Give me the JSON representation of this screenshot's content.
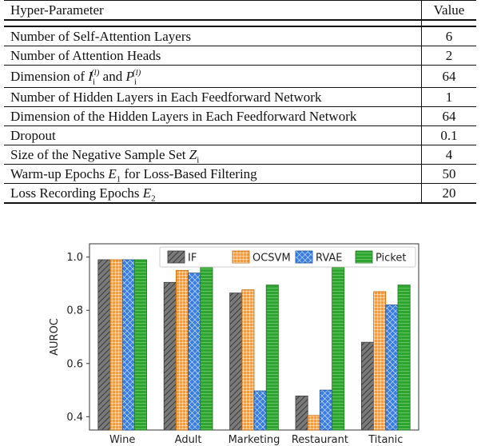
{
  "table": {
    "header": {
      "param": "Hyper-Parameter",
      "value": "Value"
    },
    "rows": [
      {
        "pre": "Number of Self-Attention Layers",
        "value": "6"
      },
      {
        "pre": "Number of Attention Heads",
        "value": "2"
      },
      {
        "pre": "Dimension of ",
        "m1": "I",
        "m1sub": "i",
        "m1sup": "(l)",
        "mid": " and ",
        "m2": "P",
        "m2sub": "i",
        "m2sup": "(l)",
        "value": "64"
      },
      {
        "pre": "Number of Hidden Layers in Each Feedforward Network",
        "value": "1"
      },
      {
        "pre": "Dimension of the Hidden Layers in Each Feedforward Network",
        "value": "64"
      },
      {
        "pre": "Dropout",
        "value": "0.1"
      },
      {
        "pre": "Size of the Negative Sample Set ",
        "m1": "Z",
        "m1sub": "i",
        "value": "4"
      },
      {
        "pre": "Warm-up Epochs ",
        "m1": "E",
        "m1sub": "1",
        "post": " for Loss-Based Filtering",
        "value": "50"
      },
      {
        "pre": "Loss Recording Epochs ",
        "m1": "E",
        "m1sub": "2",
        "value": "20"
      }
    ]
  },
  "chart_data": {
    "type": "bar",
    "categories": [
      "Wine",
      "Adult",
      "Marketing",
      "Restaurant",
      "Titanic"
    ],
    "series": [
      {
        "name": "IF",
        "values": [
          0.99,
          0.905,
          0.865,
          0.478,
          0.68
        ],
        "color": "#6b6b6b",
        "pattern": "diagonal-hatch"
      },
      {
        "name": "OCSVM",
        "values": [
          0.99,
          0.95,
          0.877,
          0.405,
          0.87
        ],
        "color": "#f0860f",
        "pattern": "grid"
      },
      {
        "name": "RVAE",
        "values": [
          0.99,
          0.94,
          0.497,
          0.5,
          0.82
        ],
        "color": "#2f6fd0",
        "pattern": "cross-hatch"
      },
      {
        "name": "Picket",
        "values": [
          0.99,
          0.97,
          0.895,
          0.965,
          0.895
        ],
        "color": "#2ca02c",
        "pattern": "horizontal-lines"
      }
    ],
    "ylabel": "AUROC",
    "xlabel": "",
    "ylim": [
      0.35,
      1.05
    ],
    "yticks": [
      0.4,
      0.6,
      0.8,
      1.0
    ],
    "ytick_labels": [
      "0.4",
      "0.6",
      "0.8",
      "1.0"
    ],
    "legend_position": "top-right",
    "grid": false
  }
}
